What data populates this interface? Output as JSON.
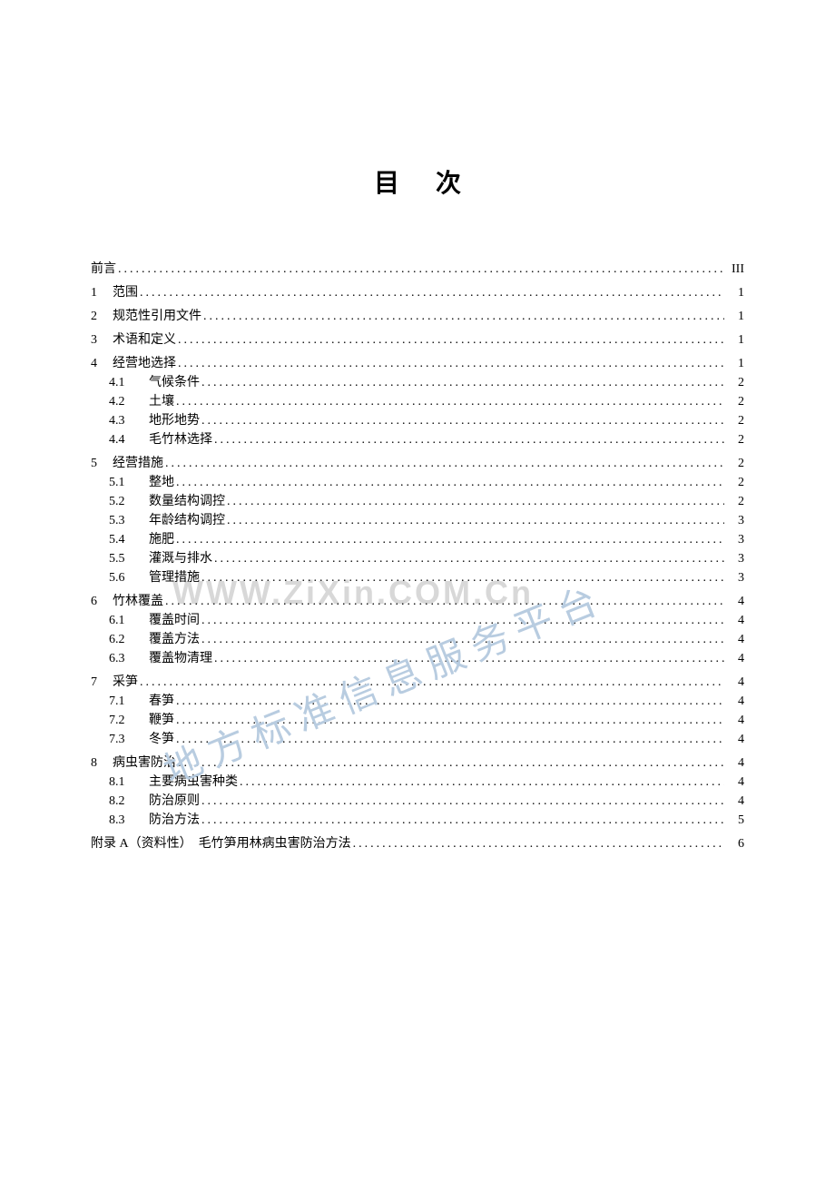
{
  "title": "目次",
  "title_fontsize": 28,
  "body_fontsize": 14,
  "colors": {
    "text": "#000000",
    "background": "#ffffff",
    "watermark_gray": "#d8d8d8",
    "watermark_blue": "#b8cce0"
  },
  "watermark": {
    "url": "WWW.ZiXin.COM.Cn",
    "diagonal": "地方标准信息服务平台"
  },
  "toc": [
    {
      "level": 0,
      "number": "",
      "text": "前言",
      "page": "III",
      "section_start": false
    },
    {
      "level": 1,
      "number": "1",
      "text": "范围",
      "page": "1",
      "section_start": true
    },
    {
      "level": 1,
      "number": "2",
      "text": "规范性引用文件",
      "page": "1",
      "section_start": true
    },
    {
      "level": 1,
      "number": "3",
      "text": "术语和定义",
      "page": "1",
      "section_start": true
    },
    {
      "level": 1,
      "number": "4",
      "text": "经营地选择",
      "page": "1",
      "section_start": true
    },
    {
      "level": 2,
      "number": "4.1",
      "text": "气候条件",
      "page": "2",
      "section_start": false
    },
    {
      "level": 2,
      "number": "4.2",
      "text": "土壤",
      "page": "2",
      "section_start": false
    },
    {
      "level": 2,
      "number": "4.3",
      "text": "地形地势",
      "page": "2",
      "section_start": false
    },
    {
      "level": 2,
      "number": "4.4",
      "text": "毛竹林选择",
      "page": "2",
      "section_start": false
    },
    {
      "level": 1,
      "number": "5",
      "text": "经营措施",
      "page": "2",
      "section_start": true
    },
    {
      "level": 2,
      "number": "5.1",
      "text": "整地",
      "page": "2",
      "section_start": false
    },
    {
      "level": 2,
      "number": "5.2",
      "text": "数量结构调控",
      "page": "2",
      "section_start": false
    },
    {
      "level": 2,
      "number": "5.3",
      "text": "年龄结构调控",
      "page": "3",
      "section_start": false
    },
    {
      "level": 2,
      "number": "5.4",
      "text": "施肥",
      "page": "3",
      "section_start": false
    },
    {
      "level": 2,
      "number": "5.5",
      "text": "灌溉与排水",
      "page": "3",
      "section_start": false
    },
    {
      "level": 2,
      "number": "5.6",
      "text": "管理措施",
      "page": "3",
      "section_start": false
    },
    {
      "level": 1,
      "number": "6",
      "text": "竹林覆盖",
      "page": "4",
      "section_start": true
    },
    {
      "level": 2,
      "number": "6.1",
      "text": "覆盖时间",
      "page": "4",
      "section_start": false
    },
    {
      "level": 2,
      "number": "6.2",
      "text": "覆盖方法",
      "page": "4",
      "section_start": false
    },
    {
      "level": 2,
      "number": "6.3",
      "text": "覆盖物清理",
      "page": "4",
      "section_start": false
    },
    {
      "level": 1,
      "number": "7",
      "text": "采笋",
      "page": "4",
      "section_start": true
    },
    {
      "level": 2,
      "number": "7.1",
      "text": "春笋",
      "page": "4",
      "section_start": false
    },
    {
      "level": 2,
      "number": "7.2",
      "text": "鞭笋",
      "page": "4",
      "section_start": false
    },
    {
      "level": 2,
      "number": "7.3",
      "text": "冬笋",
      "page": "4",
      "section_start": false
    },
    {
      "level": 1,
      "number": "8",
      "text": "病虫害防治",
      "page": "4",
      "section_start": true
    },
    {
      "level": 2,
      "number": "8.1",
      "text": "主要病虫害种类",
      "page": "4",
      "section_start": false
    },
    {
      "level": 2,
      "number": "8.2",
      "text": "防治原则",
      "page": "4",
      "section_start": false
    },
    {
      "level": 2,
      "number": "8.3",
      "text": "防治方法",
      "page": "5",
      "section_start": false
    },
    {
      "level": 0,
      "number": "",
      "text": "附录 A（资料性）　毛竹笋用林病虫害防治方法",
      "page": "6",
      "section_start": true
    }
  ]
}
